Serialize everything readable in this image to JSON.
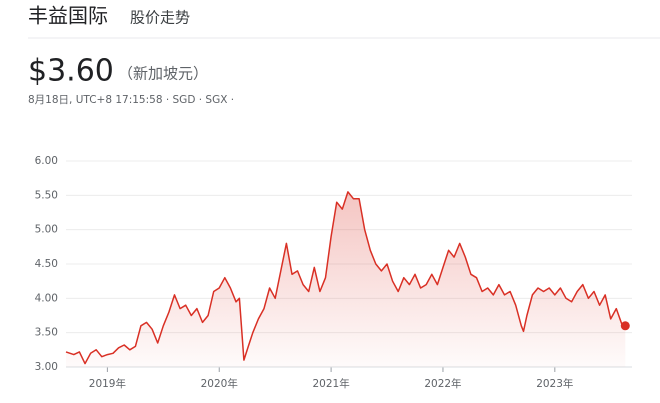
{
  "chart_data": {
    "type": "area",
    "title": "丰益国际",
    "subtitle": "股价走势",
    "price": "$3.60",
    "currency": "（新加坡元）",
    "timestamp": "8月18日, UTC+8 17:15:58 · SGD · SGX ·",
    "color": "#d93025",
    "grid": true,
    "xlim": [
      2018.63,
      2023.69
    ],
    "ylim": [
      3.0,
      6.0
    ],
    "yticks": [
      {
        "value": 3,
        "label": "3.00"
      },
      {
        "value": 3.5,
        "label": "3.50"
      },
      {
        "value": 4,
        "label": "4.00"
      },
      {
        "value": 4.5,
        "label": "4.50"
      },
      {
        "value": 5,
        "label": "5.00"
      },
      {
        "value": 5.5,
        "label": "5.50"
      },
      {
        "value": 6,
        "label": "6.00"
      }
    ],
    "xticks": [
      {
        "value": 2019,
        "label": "2019年"
      },
      {
        "value": 2020,
        "label": "2020年"
      },
      {
        "value": 2021,
        "label": "2021年"
      },
      {
        "value": 2022,
        "label": "2022年"
      },
      {
        "value": 2023,
        "label": "2023年"
      }
    ],
    "x": [
      2018.63,
      2018.7,
      2018.75,
      2018.8,
      2018.85,
      2018.9,
      2018.95,
      2019.0,
      2019.05,
      2019.1,
      2019.15,
      2019.2,
      2019.25,
      2019.3,
      2019.35,
      2019.4,
      2019.45,
      2019.5,
      2019.55,
      2019.6,
      2019.65,
      2019.7,
      2019.75,
      2019.8,
      2019.85,
      2019.9,
      2019.95,
      2020.0,
      2020.05,
      2020.1,
      2020.15,
      2020.18,
      2020.22,
      2020.26,
      2020.3,
      2020.35,
      2020.4,
      2020.45,
      2020.5,
      2020.55,
      2020.6,
      2020.65,
      2020.7,
      2020.75,
      2020.8,
      2020.85,
      2020.9,
      2020.95,
      2021.0,
      2021.05,
      2021.1,
      2021.15,
      2021.2,
      2021.25,
      2021.3,
      2021.35,
      2021.4,
      2021.45,
      2021.5,
      2021.55,
      2021.6,
      2021.65,
      2021.7,
      2021.75,
      2021.8,
      2021.85,
      2021.9,
      2021.95,
      2022.0,
      2022.05,
      2022.1,
      2022.15,
      2022.2,
      2022.25,
      2022.3,
      2022.35,
      2022.4,
      2022.45,
      2022.5,
      2022.55,
      2022.6,
      2022.65,
      2022.7,
      2022.72,
      2022.75,
      2022.8,
      2022.85,
      2022.9,
      2022.95,
      2023.0,
      2023.05,
      2023.1,
      2023.15,
      2023.2,
      2023.25,
      2023.3,
      2023.35,
      2023.4,
      2023.45,
      2023.5,
      2023.55,
      2023.6,
      2023.63
    ],
    "values": [
      3.22,
      3.18,
      3.22,
      3.05,
      3.2,
      3.25,
      3.15,
      3.18,
      3.2,
      3.28,
      3.32,
      3.25,
      3.3,
      3.6,
      3.65,
      3.55,
      3.35,
      3.6,
      3.8,
      4.05,
      3.85,
      3.9,
      3.75,
      3.85,
      3.65,
      3.75,
      4.1,
      4.15,
      4.3,
      4.15,
      3.95,
      4.0,
      3.1,
      3.3,
      3.5,
      3.7,
      3.85,
      4.15,
      4.0,
      4.4,
      4.8,
      4.35,
      4.4,
      4.2,
      4.1,
      4.45,
      4.1,
      4.3,
      4.9,
      5.4,
      5.3,
      5.55,
      5.45,
      5.45,
      5.0,
      4.7,
      4.5,
      4.4,
      4.5,
      4.25,
      4.1,
      4.3,
      4.2,
      4.35,
      4.15,
      4.2,
      4.35,
      4.2,
      4.45,
      4.7,
      4.6,
      4.8,
      4.6,
      4.35,
      4.3,
      4.1,
      4.15,
      4.05,
      4.2,
      4.05,
      4.1,
      3.9,
      3.6,
      3.52,
      3.75,
      4.05,
      4.15,
      4.1,
      4.15,
      4.05,
      4.15,
      4.0,
      3.95,
      4.1,
      4.2,
      4.0,
      4.1,
      3.9,
      4.05,
      3.7,
      3.85,
      3.62,
      3.6
    ]
  }
}
